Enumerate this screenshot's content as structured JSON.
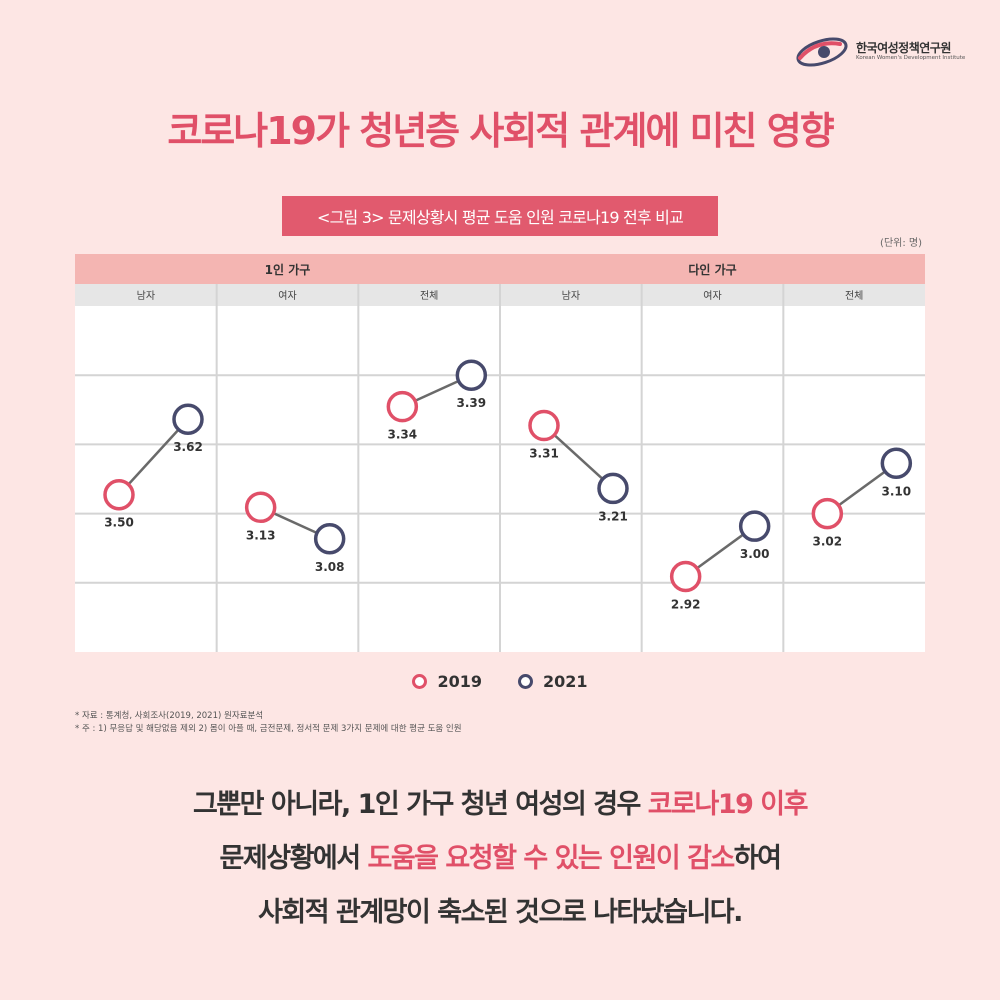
{
  "logo": {
    "name_ko": "한국여성정책연구원",
    "name_en": "Korean Women's Development Institute"
  },
  "title": "코로나19가 청년층 사회적 관계에 미친 영향",
  "figure_caption": "<그림 3> 문제상황시 평균 도움 인원 코로나19 전후 비교",
  "unit_label": "(단위: 명)",
  "colors": {
    "y2019": "#e05068",
    "y2021": "#474a6c",
    "connector": "#6a6a6a",
    "header_top": "#f4b5b2",
    "header_sub": "#e6e6e6",
    "accent": "#e05068"
  },
  "chart_data": {
    "type": "line",
    "groups": [
      {
        "label": "1인 가구",
        "categories": [
          "남자",
          "여자",
          "전체"
        ]
      },
      {
        "label": "다인 가구",
        "categories": [
          "남자",
          "여자",
          "전체"
        ]
      }
    ],
    "categories": [
      "남자",
      "여자",
      "전체",
      "남자",
      "여자",
      "전체"
    ],
    "series": [
      {
        "name": "2019",
        "values": [
          3.5,
          3.13,
          3.34,
          3.31,
          2.92,
          3.02
        ]
      },
      {
        "name": "2021",
        "values": [
          3.62,
          3.08,
          3.39,
          3.21,
          3.0,
          3.1
        ]
      }
    ],
    "value_labels": {
      "2019": [
        "3.50",
        "3.13",
        "3.34",
        "3.31",
        "2.92",
        "3.02"
      ],
      "2021": [
        "3.62",
        "3.08",
        "3.39",
        "3.21",
        "3.00",
        "3.10"
      ]
    },
    "yrange_per_panel": [
      [
        3.25,
        3.8
      ],
      [
        2.9,
        3.45
      ],
      [
        2.95,
        3.5
      ],
      [
        2.95,
        3.5
      ],
      [
        2.8,
        3.35
      ],
      [
        2.8,
        3.35
      ]
    ],
    "grid": true,
    "legend_position": "bottom-center"
  },
  "legend": [
    "2019",
    "2021"
  ],
  "notes": [
    "* 자료 : 통계청, 사회조사(2019, 2021) 원자료분석",
    "* 주 : 1) 무응답 및 해당없음 제외 2) 몸이 아플 때, 금전문제, 정서적 문제 3가지 문제에 대한 평균 도움 인원"
  ],
  "body": {
    "line1_a": "그뿐만 아니라, 1인 가구 청년 여성의 경우 ",
    "line1_b": "코로나19 이후",
    "line2_a": "문제상황에서 ",
    "line2_b": "도움을 요청할 수 있는 인원이 감소",
    "line2_c": "하여",
    "line3": "사회적 관계망이 축소된 것으로 나타났습니다."
  }
}
